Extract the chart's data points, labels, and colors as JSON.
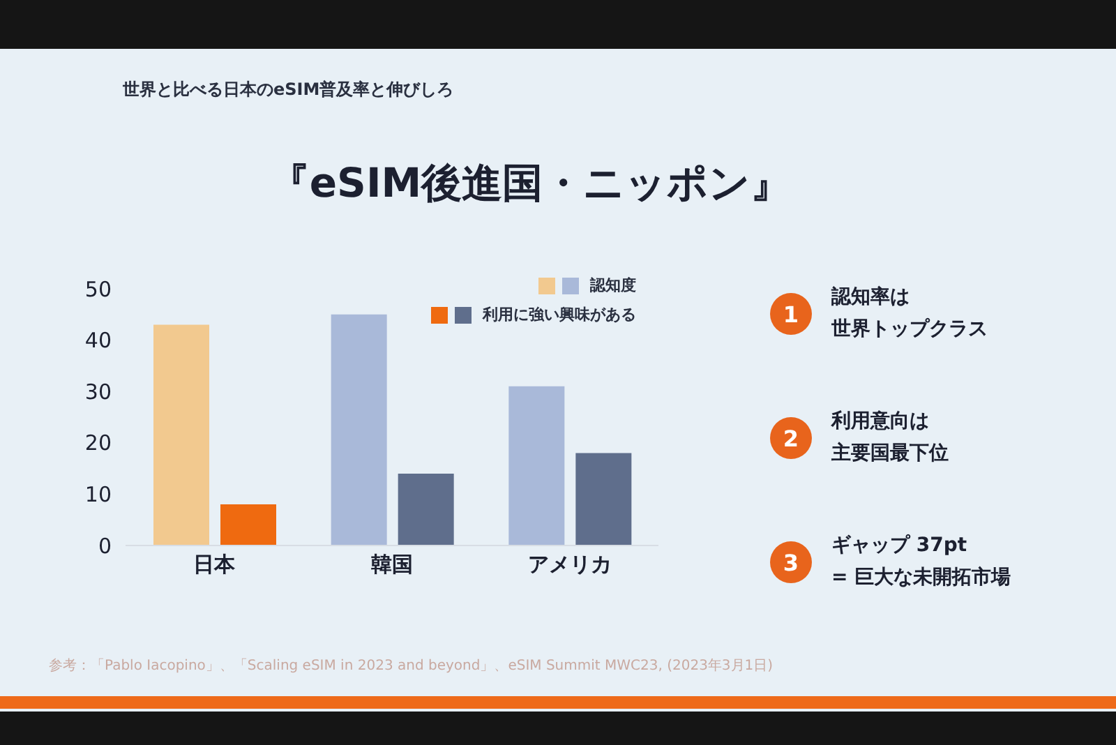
{
  "chart_data": {
    "type": "bar",
    "title": "『eSIM後進国・ニッポン』",
    "subtitle": "世界と比べる日本のeSIM普及率と伸びしろ",
    "categories": [
      "日本",
      "韓国",
      "アメリカ"
    ],
    "series": [
      {
        "name": "認知度",
        "colors": [
          "#f2c98f",
          "#a9b9d9",
          "#a9b9d9"
        ],
        "values": [
          43,
          45,
          31
        ]
      },
      {
        "name": "利用に強い興味がある",
        "colors": [
          "#ef6a10",
          "#5f6e8c",
          "#5f6e8c"
        ],
        "values": [
          8,
          14,
          18
        ]
      }
    ],
    "ylim": [
      0,
      50
    ],
    "yticks": [
      0,
      10,
      20,
      30,
      40,
      50
    ],
    "legend": "top right",
    "annotations": [
      "1",
      "認知率は",
      "世界トップクラス",
      "2",
      "利用意向は",
      "主要国最下位",
      "3",
      "ギャップ 37pt",
      "= 巨大な未開拓市場",
      "参考：「Pablo Iacopino」、「Scaling eSIM in 2023 and beyond」、eSIM Summit MWC23, (2023年3月1日)"
    ]
  }
}
